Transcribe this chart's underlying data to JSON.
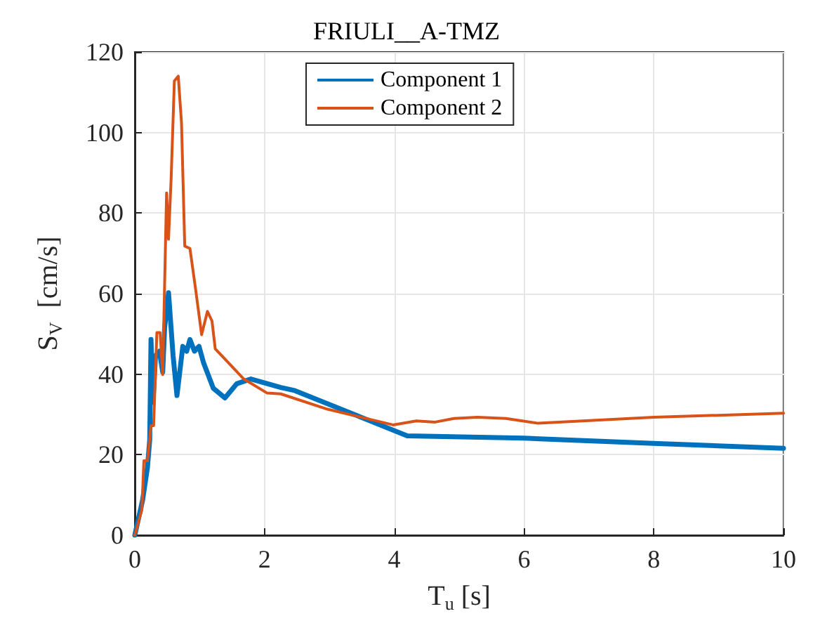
{
  "chart_data": {
    "type": "line",
    "title": "FRIULI__A-TMZ",
    "xlabel": "T$_{u}$ [s]",
    "ylabel": "S$_{V}$  [cm/s]",
    "xlim": [
      0,
      10
    ],
    "xticks": [
      0,
      2,
      4,
      6,
      8,
      10
    ],
    "ylim": [
      0,
      120
    ],
    "yticks": [
      0,
      20,
      40,
      60,
      80,
      100,
      120
    ],
    "grid": true,
    "legend": "top",
    "line_style": "solid",
    "marker": "none",
    "series": [
      {
        "name": "Component 1",
        "color": "#0072bd",
        "x": [
          0,
          0.12,
          0.195,
          0.23,
          0.25,
          0.28,
          0.32,
          0.38,
          0.43,
          0.46,
          0.52,
          0.59,
          0.65,
          0.74,
          0.8,
          0.85,
          0.92,
          0.99,
          1.06,
          1.21,
          1.39,
          1.57,
          1.79,
          2.25,
          2.47,
          4.2,
          6.0,
          8.0,
          10
        ],
        "values": [
          0,
          8.7,
          16.8,
          23.7,
          48.6,
          33,
          44.6,
          45.7,
          40.5,
          51.5,
          60.2,
          44.6,
          34.7,
          46.9,
          45.7,
          48.6,
          45.7,
          46.9,
          42.8,
          36.5,
          34.1,
          37.6,
          38.8,
          36.7,
          35.9,
          24.7,
          24.1,
          22.8,
          21.6
        ]
      },
      {
        "name": "Component 2",
        "color": "#d95319",
        "x": [
          0,
          0.11,
          0.14,
          0.195,
          0.25,
          0.29,
          0.34,
          0.39,
          0.43,
          0.49,
          0.52,
          0.56,
          0.61,
          0.67,
          0.72,
          0.77,
          0.85,
          0.94,
          1.03,
          1.12,
          1.19,
          1.24,
          1.68,
          2.04,
          2.25,
          2.97,
          3.98,
          4.34,
          4.63,
          4.92,
          5.28,
          5.72,
          6.22,
          8.0,
          10
        ],
        "values": [
          0,
          6.4,
          18.5,
          18.5,
          27.2,
          27.2,
          50.3,
          50.3,
          39.9,
          85,
          73.5,
          88.5,
          112.8,
          114,
          102.4,
          71.8,
          71.2,
          60.8,
          49.8,
          55.6,
          53.2,
          46.3,
          38.8,
          35.3,
          35.1,
          31.3,
          27.4,
          28.4,
          28.1,
          29,
          29.3,
          29,
          27.8,
          29.3,
          30.3
        ]
      }
    ]
  }
}
